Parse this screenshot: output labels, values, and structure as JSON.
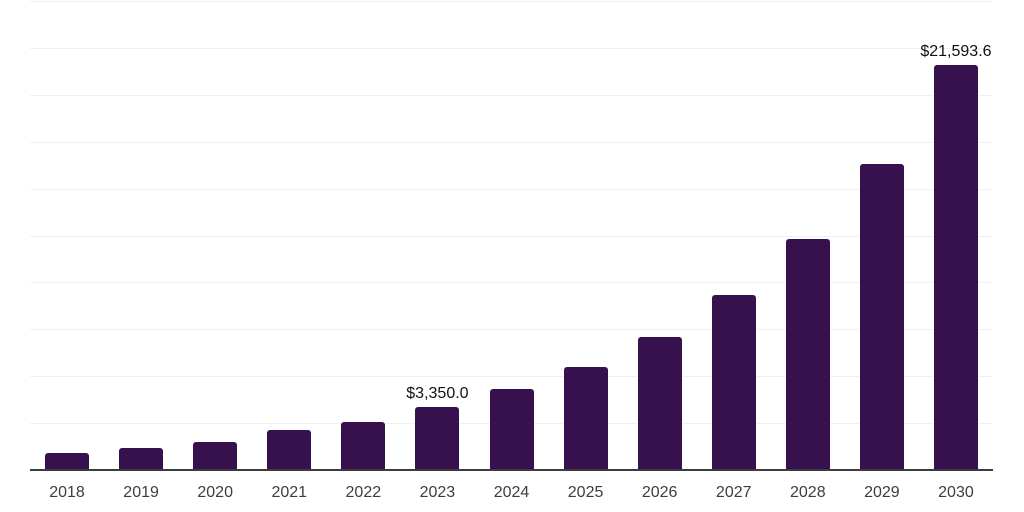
{
  "chart_data": {
    "type": "bar",
    "title": "",
    "xlabel": "",
    "ylabel": "",
    "categories": [
      "2018",
      "2019",
      "2020",
      "2021",
      "2022",
      "2023",
      "2024",
      "2025",
      "2026",
      "2027",
      "2028",
      "2029",
      "2030"
    ],
    "values": [
      890,
      1170,
      1510,
      2130,
      2570,
      3350,
      4300,
      5510,
      7110,
      9330,
      12300,
      16300,
      21593.6
    ],
    "labeled_points": [
      {
        "category": "2023",
        "label": "$3,350.0"
      },
      {
        "category": "2030",
        "label": "$21,593.6"
      }
    ],
    "ylim": [
      0,
      25000
    ],
    "grid_interval": 2500,
    "grid_on": true,
    "legend": "none",
    "colors": {
      "bar": "#36114d",
      "gridline": "#f0f0f0",
      "axis_line": "#3d3d3d",
      "tick_label": "#3d3d3d",
      "data_label": "#111111",
      "background": "#ffffff"
    }
  }
}
